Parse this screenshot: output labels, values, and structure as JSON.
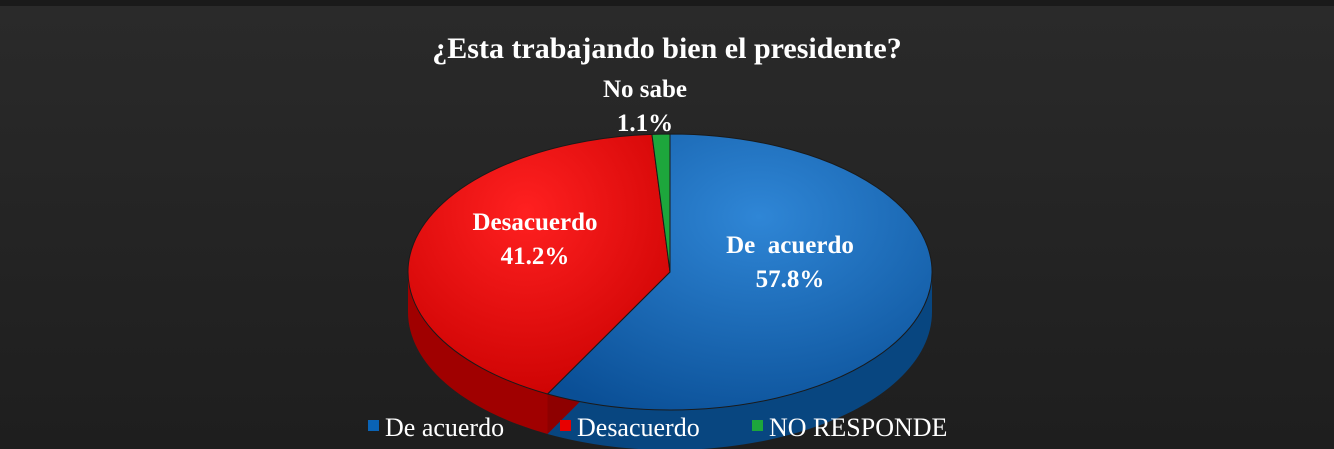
{
  "chart_data": {
    "type": "pie",
    "title": "¿Esta trabajando bien el presidente?",
    "slices": [
      {
        "name": "De acuerdo",
        "label": "De  acuerdo",
        "value": 57.8,
        "value_label": "57.8%",
        "color": "#0A63B5"
      },
      {
        "name": "Desacuerdo",
        "label": "Desacuerdo",
        "value": 41.2,
        "value_label": "41.2%",
        "color": "#E80000"
      },
      {
        "name": "NO RESPONDE",
        "label": "No sabe",
        "value": 1.1,
        "value_label": "1.1%",
        "color": "#1DA63C"
      }
    ],
    "legend": {
      "placement": "bottom",
      "items": [
        "De acuerdo",
        "Desacuerdo",
        "NO RESPONDE"
      ]
    }
  }
}
